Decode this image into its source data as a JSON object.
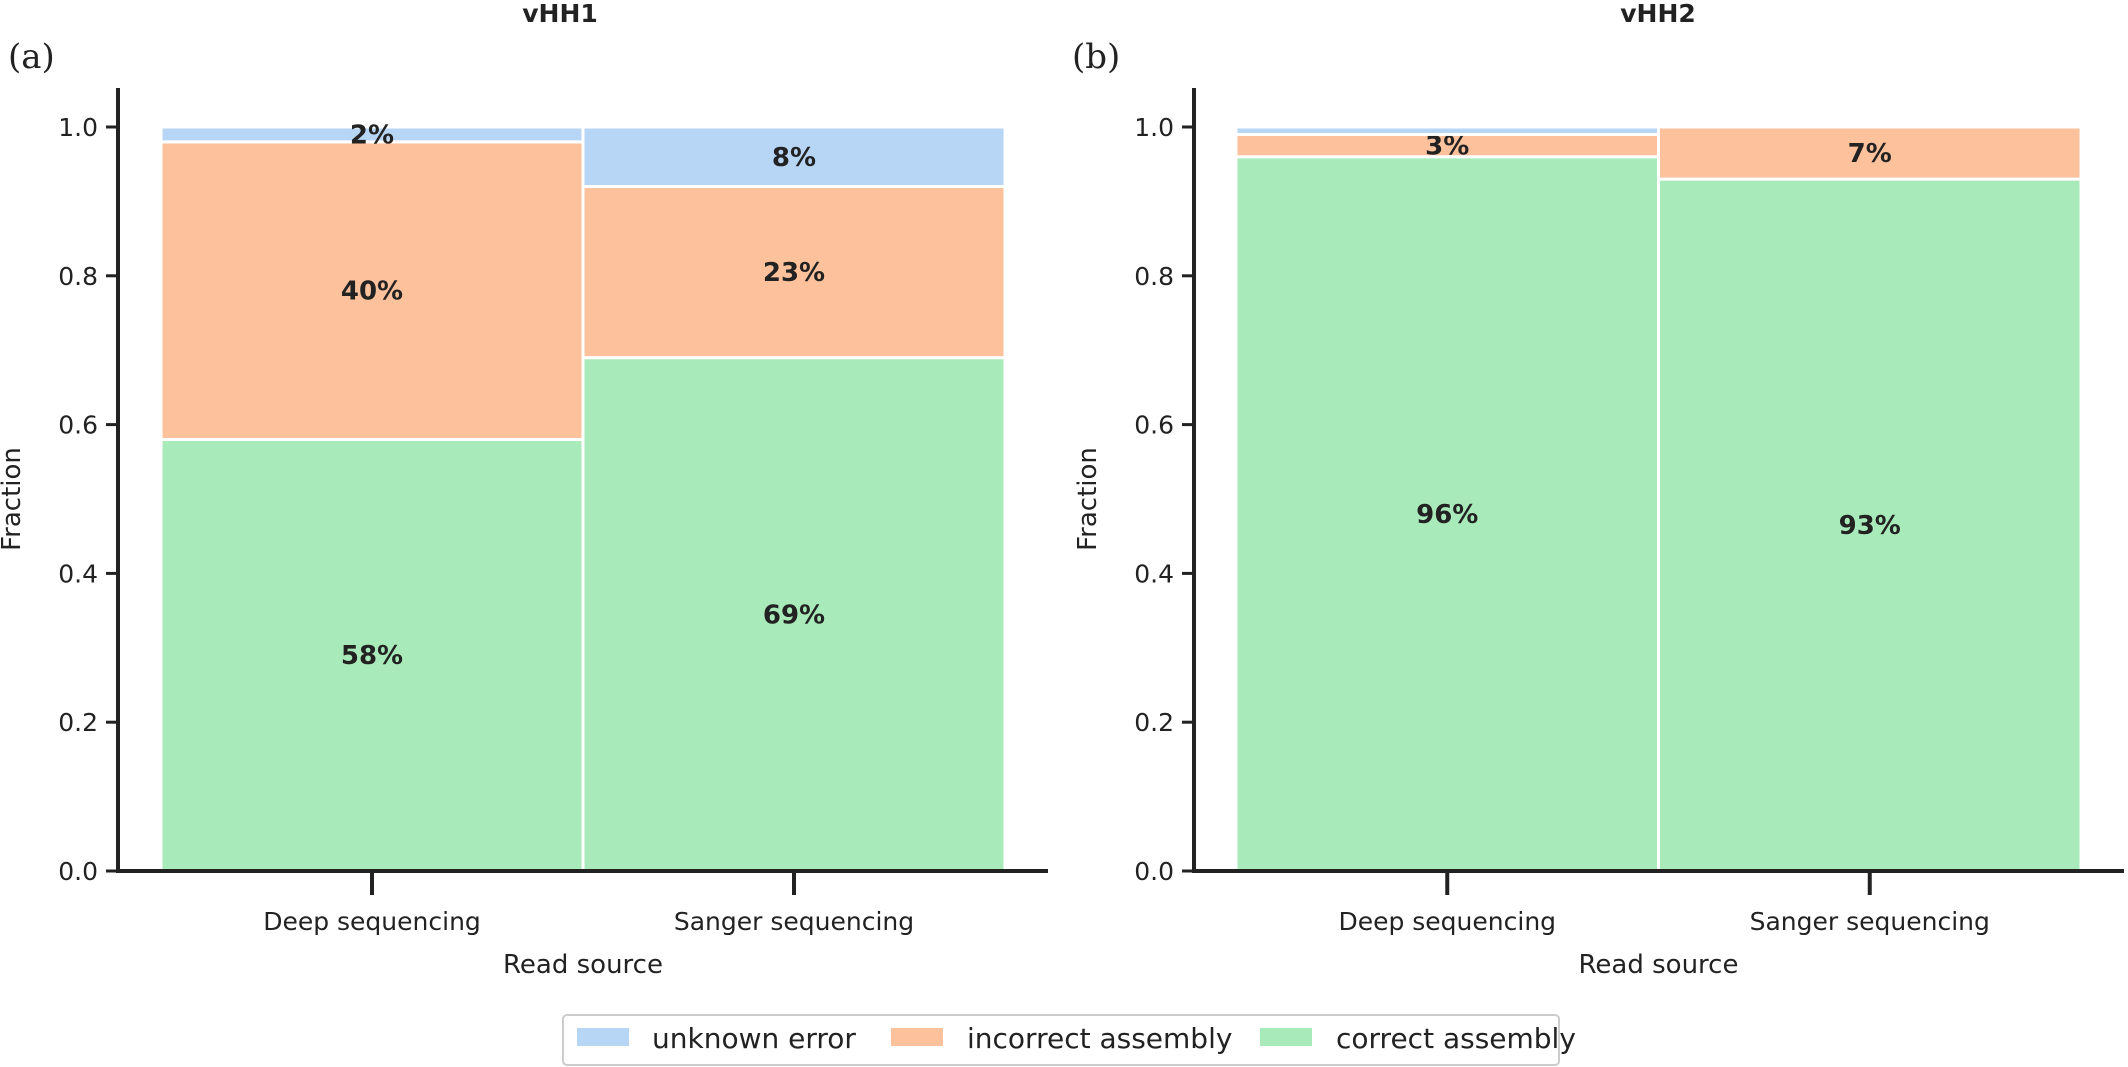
{
  "colors": {
    "unknown error": "#b7d5f4",
    "incorrect assembly": "#fdc19c",
    "correct assembly": "#a8eab9",
    "axis": "#222222",
    "segment_edge": "#ffffff"
  },
  "legend": {
    "placement": "bottom-center",
    "entries": [
      "unknown error",
      "incorrect assembly",
      "correct assembly"
    ]
  },
  "chart_data": [
    {
      "type": "bar",
      "stacked": true,
      "title": "vHH1",
      "panel": "(a)",
      "xlabel": "Read source",
      "ylabel": "Fraction",
      "ylim": [
        0,
        1.05
      ],
      "yticks": [
        "0.0",
        "0.2",
        "0.4",
        "0.6",
        "0.8",
        "1.0"
      ],
      "categories": [
        "Deep sequencing",
        "Sanger sequencing"
      ],
      "series": [
        {
          "name": "correct assembly",
          "values": [
            0.58,
            0.69
          ],
          "labels": [
            "58%",
            "69%"
          ]
        },
        {
          "name": "incorrect assembly",
          "values": [
            0.4,
            0.23
          ],
          "labels": [
            "40%",
            "23%"
          ]
        },
        {
          "name": "unknown error",
          "values": [
            0.02,
            0.08
          ],
          "labels": [
            "2%",
            "8%"
          ]
        }
      ]
    },
    {
      "type": "bar",
      "stacked": true,
      "title": "vHH2",
      "panel": "(b)",
      "xlabel": "Read source",
      "ylabel": "Fraction",
      "ylim": [
        0,
        1.05
      ],
      "yticks": [
        "0.0",
        "0.2",
        "0.4",
        "0.6",
        "0.8",
        "1.0"
      ],
      "categories": [
        "Deep sequencing",
        "Sanger sequencing"
      ],
      "series": [
        {
          "name": "correct assembly",
          "values": [
            0.96,
            0.93
          ],
          "labels": [
            "96%",
            "93%"
          ]
        },
        {
          "name": "incorrect assembly",
          "values": [
            0.03,
            0.07
          ],
          "labels": [
            "3%",
            "7%"
          ]
        },
        {
          "name": "unknown error",
          "values": [
            0.01,
            0.0
          ],
          "labels": [
            "",
            ""
          ]
        }
      ]
    }
  ]
}
